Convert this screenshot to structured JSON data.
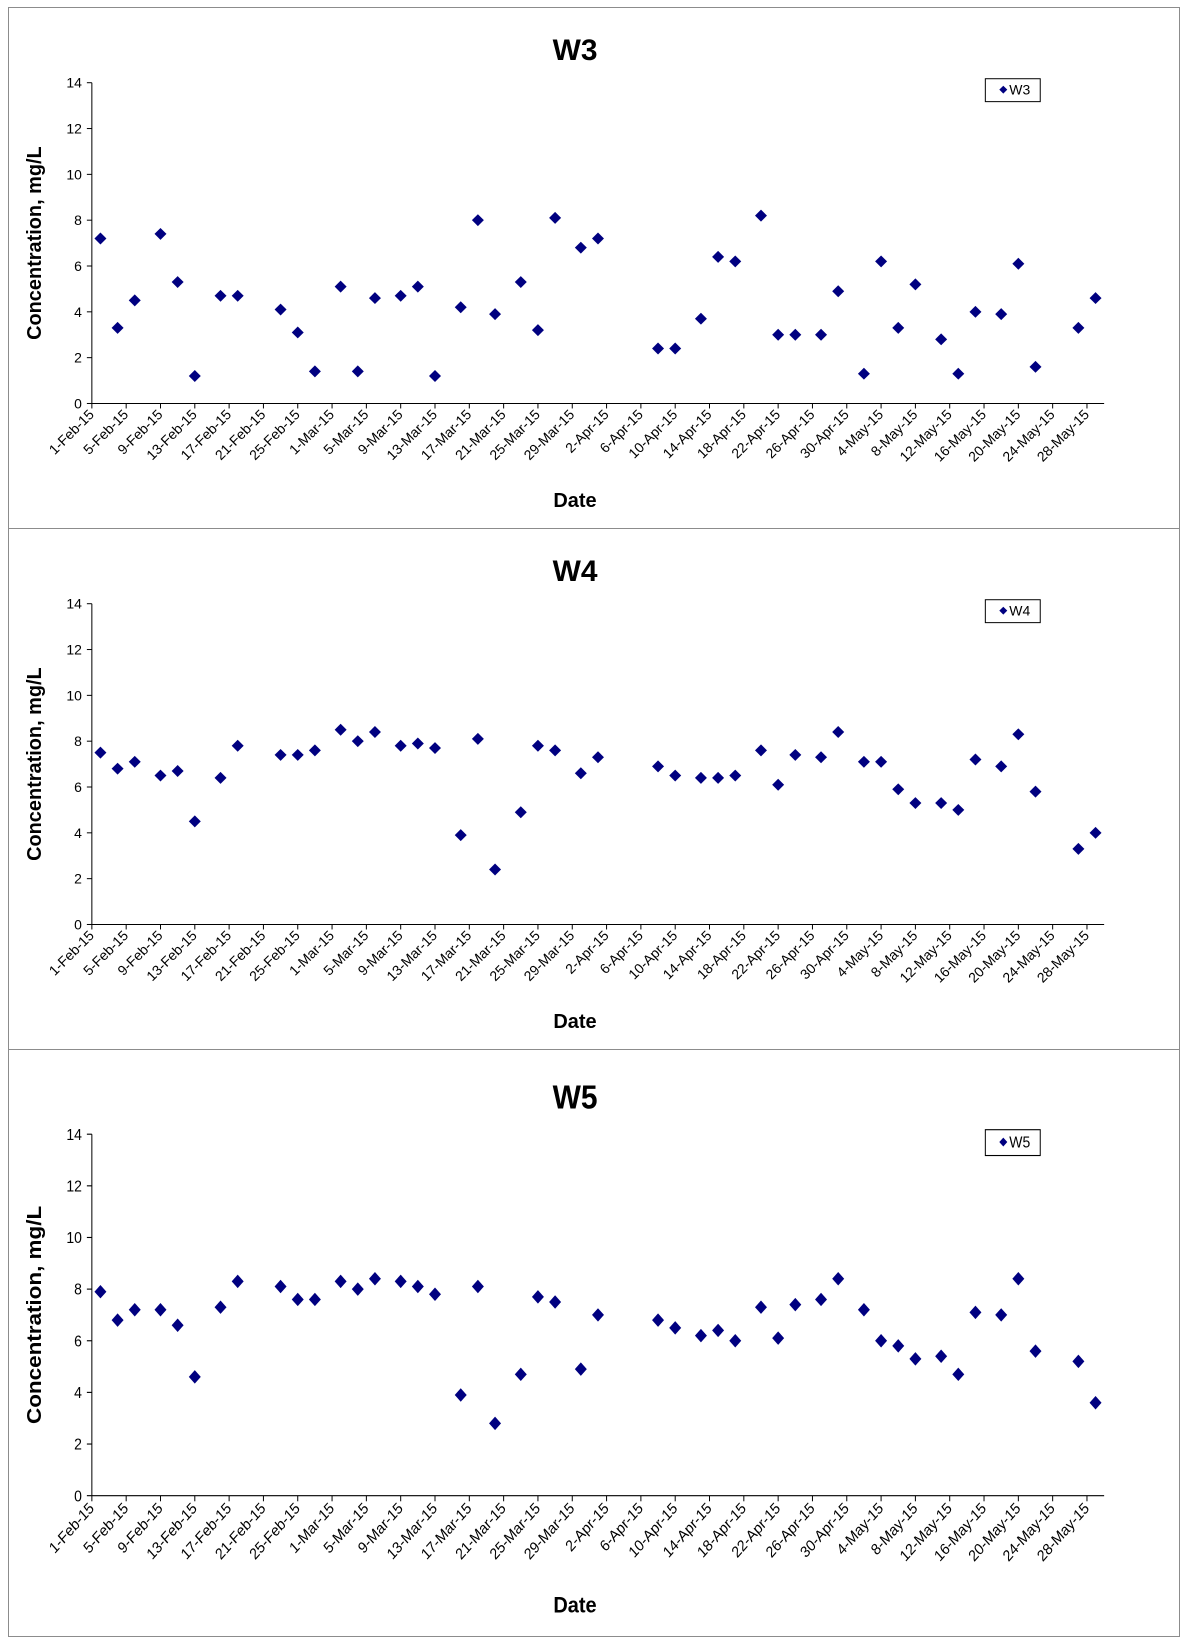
{
  "chart_data": [
    {
      "type": "scatter",
      "title": "W3",
      "xlabel": "Date",
      "ylabel": "Concentration, mg/L",
      "ylim": [
        0,
        14
      ],
      "yticks": [
        "0",
        "2",
        "4",
        "6",
        "8",
        "10",
        "12",
        "14"
      ],
      "xlim": [
        "2015-02-01",
        "2015-05-30"
      ],
      "xticks": [
        "1-Feb-15",
        "5-Feb-15",
        "9-Feb-15",
        "13-Feb-15",
        "17-Feb-15",
        "21-Feb-15",
        "25-Feb-15",
        "1-Mar-15",
        "5-Mar-15",
        "9-Mar-15",
        "13-Mar-15",
        "17-Mar-15",
        "21-Mar-15",
        "25-Mar-15",
        "29-Mar-15",
        "2-Apr-15",
        "6-Apr-15",
        "10-Apr-15",
        "14-Apr-15",
        "18-Apr-15",
        "22-Apr-15",
        "26-Apr-15",
        "30-Apr-15",
        "4-May-15",
        "8-May-15",
        "12-May-15",
        "16-May-15",
        "20-May-15",
        "24-May-15",
        "28-May-15"
      ],
      "grid": false,
      "legend_position": "top-right",
      "marker_color": "#000080",
      "series": [
        {
          "name": "W3",
          "points": [
            [
              "2015-02-02",
              7.2
            ],
            [
              "2015-02-04",
              3.3
            ],
            [
              "2015-02-06",
              4.5
            ],
            [
              "2015-02-09",
              7.4
            ],
            [
              "2015-02-11",
              5.3
            ],
            [
              "2015-02-13",
              1.2
            ],
            [
              "2015-02-16",
              4.7
            ],
            [
              "2015-02-18",
              4.7
            ],
            [
              "2015-02-23",
              4.1
            ],
            [
              "2015-02-25",
              3.1
            ],
            [
              "2015-02-27",
              1.4
            ],
            [
              "2015-03-02",
              5.1
            ],
            [
              "2015-03-04",
              1.4
            ],
            [
              "2015-03-06",
              4.6
            ],
            [
              "2015-03-09",
              4.7
            ],
            [
              "2015-03-11",
              5.1
            ],
            [
              "2015-03-13",
              1.2
            ],
            [
              "2015-03-16",
              4.2
            ],
            [
              "2015-03-18",
              8.0
            ],
            [
              "2015-03-20",
              3.9
            ],
            [
              "2015-03-23",
              5.3
            ],
            [
              "2015-03-25",
              3.2
            ],
            [
              "2015-03-27",
              8.1
            ],
            [
              "2015-03-30",
              6.8
            ],
            [
              "2015-04-01",
              7.2
            ],
            [
              "2015-04-08",
              2.4
            ],
            [
              "2015-04-10",
              2.4
            ],
            [
              "2015-04-13",
              3.7
            ],
            [
              "2015-04-15",
              6.4
            ],
            [
              "2015-04-17",
              6.2
            ],
            [
              "2015-04-20",
              8.2
            ],
            [
              "2015-04-22",
              3.0
            ],
            [
              "2015-04-24",
              3.0
            ],
            [
              "2015-04-27",
              3.0
            ],
            [
              "2015-04-29",
              4.9
            ],
            [
              "2015-05-02",
              1.3
            ],
            [
              "2015-05-04",
              6.2
            ],
            [
              "2015-05-06",
              3.3
            ],
            [
              "2015-05-08",
              5.2
            ],
            [
              "2015-05-11",
              2.8
            ],
            [
              "2015-05-13",
              1.3
            ],
            [
              "2015-05-15",
              4.0
            ],
            [
              "2015-05-18",
              3.9
            ],
            [
              "2015-05-20",
              6.1
            ],
            [
              "2015-05-22",
              1.6
            ],
            [
              "2015-05-27",
              3.3
            ],
            [
              "2015-05-29",
              4.6
            ]
          ]
        }
      ]
    },
    {
      "type": "scatter",
      "title": "W4",
      "xlabel": "Date",
      "ylabel": "Concentration, mg/L",
      "ylim": [
        0,
        14
      ],
      "yticks": [
        "0",
        "2",
        "4",
        "6",
        "8",
        "10",
        "12",
        "14"
      ],
      "xlim": [
        "2015-02-01",
        "2015-05-30"
      ],
      "xticks": [
        "1-Feb-15",
        "5-Feb-15",
        "9-Feb-15",
        "13-Feb-15",
        "17-Feb-15",
        "21-Feb-15",
        "25-Feb-15",
        "1-Mar-15",
        "5-Mar-15",
        "9-Mar-15",
        "13-Mar-15",
        "17-Mar-15",
        "21-Mar-15",
        "25-Mar-15",
        "29-Mar-15",
        "2-Apr-15",
        "6-Apr-15",
        "10-Apr-15",
        "14-Apr-15",
        "18-Apr-15",
        "22-Apr-15",
        "26-Apr-15",
        "30-Apr-15",
        "4-May-15",
        "8-May-15",
        "12-May-15",
        "16-May-15",
        "20-May-15",
        "24-May-15",
        "28-May-15"
      ],
      "grid": false,
      "legend_position": "top-right",
      "marker_color": "#000080",
      "series": [
        {
          "name": "W4",
          "points": [
            [
              "2015-02-02",
              7.5
            ],
            [
              "2015-02-04",
              6.8
            ],
            [
              "2015-02-06",
              7.1
            ],
            [
              "2015-02-09",
              6.5
            ],
            [
              "2015-02-11",
              6.7
            ],
            [
              "2015-02-13",
              4.5
            ],
            [
              "2015-02-16",
              6.4
            ],
            [
              "2015-02-18",
              7.8
            ],
            [
              "2015-02-23",
              7.4
            ],
            [
              "2015-02-25",
              7.4
            ],
            [
              "2015-02-27",
              7.6
            ],
            [
              "2015-03-02",
              8.5
            ],
            [
              "2015-03-04",
              8.0
            ],
            [
              "2015-03-06",
              8.4
            ],
            [
              "2015-03-09",
              7.8
            ],
            [
              "2015-03-11",
              7.9
            ],
            [
              "2015-03-13",
              7.7
            ],
            [
              "2015-03-16",
              3.9
            ],
            [
              "2015-03-18",
              8.1
            ],
            [
              "2015-03-20",
              2.4
            ],
            [
              "2015-03-23",
              4.9
            ],
            [
              "2015-03-25",
              7.8
            ],
            [
              "2015-03-27",
              7.6
            ],
            [
              "2015-03-30",
              6.6
            ],
            [
              "2015-04-01",
              7.3
            ],
            [
              "2015-04-08",
              6.9
            ],
            [
              "2015-04-10",
              6.5
            ],
            [
              "2015-04-13",
              6.4
            ],
            [
              "2015-04-15",
              6.4
            ],
            [
              "2015-04-17",
              6.5
            ],
            [
              "2015-04-20",
              7.6
            ],
            [
              "2015-04-22",
              6.1
            ],
            [
              "2015-04-24",
              7.4
            ],
            [
              "2015-04-27",
              7.3
            ],
            [
              "2015-04-29",
              8.4
            ],
            [
              "2015-05-02",
              7.1
            ],
            [
              "2015-05-04",
              7.1
            ],
            [
              "2015-05-06",
              5.9
            ],
            [
              "2015-05-08",
              5.3
            ],
            [
              "2015-05-11",
              5.3
            ],
            [
              "2015-05-13",
              5.0
            ],
            [
              "2015-05-15",
              7.2
            ],
            [
              "2015-05-18",
              6.9
            ],
            [
              "2015-05-20",
              8.3
            ],
            [
              "2015-05-22",
              5.8
            ],
            [
              "2015-05-27",
              3.3
            ],
            [
              "2015-05-29",
              4.0
            ]
          ]
        }
      ]
    },
    {
      "type": "scatter",
      "title": "W5",
      "xlabel": "Date",
      "ylabel": "Concentration, mg/L",
      "ylim": [
        0,
        14
      ],
      "yticks": [
        "0",
        "2",
        "4",
        "6",
        "8",
        "10",
        "12",
        "14"
      ],
      "xlim": [
        "2015-02-01",
        "2015-05-30"
      ],
      "xticks": [
        "1-Feb-15",
        "5-Feb-15",
        "9-Feb-15",
        "13-Feb-15",
        "17-Feb-15",
        "21-Feb-15",
        "25-Feb-15",
        "1-Mar-15",
        "5-Mar-15",
        "9-Mar-15",
        "13-Mar-15",
        "17-Mar-15",
        "21-Mar-15",
        "25-Mar-15",
        "29-Mar-15",
        "2-Apr-15",
        "6-Apr-15",
        "10-Apr-15",
        "14-Apr-15",
        "18-Apr-15",
        "22-Apr-15",
        "26-Apr-15",
        "30-Apr-15",
        "4-May-15",
        "8-May-15",
        "12-May-15",
        "16-May-15",
        "20-May-15",
        "24-May-15",
        "28-May-15"
      ],
      "grid": false,
      "legend_position": "top-right",
      "marker_color": "#000080",
      "series": [
        {
          "name": "W5",
          "points": [
            [
              "2015-02-02",
              7.9
            ],
            [
              "2015-02-04",
              6.8
            ],
            [
              "2015-02-06",
              7.2
            ],
            [
              "2015-02-09",
              7.2
            ],
            [
              "2015-02-11",
              6.6
            ],
            [
              "2015-02-13",
              4.6
            ],
            [
              "2015-02-16",
              7.3
            ],
            [
              "2015-02-18",
              8.3
            ],
            [
              "2015-02-23",
              8.1
            ],
            [
              "2015-02-25",
              7.6
            ],
            [
              "2015-02-27",
              7.6
            ],
            [
              "2015-03-02",
              8.3
            ],
            [
              "2015-03-04",
              8.0
            ],
            [
              "2015-03-06",
              8.4
            ],
            [
              "2015-03-09",
              8.3
            ],
            [
              "2015-03-11",
              8.1
            ],
            [
              "2015-03-13",
              7.8
            ],
            [
              "2015-03-16",
              3.9
            ],
            [
              "2015-03-18",
              8.1
            ],
            [
              "2015-03-20",
              2.8
            ],
            [
              "2015-03-23",
              4.7
            ],
            [
              "2015-03-25",
              7.7
            ],
            [
              "2015-03-27",
              7.5
            ],
            [
              "2015-03-30",
              4.9
            ],
            [
              "2015-04-01",
              7.0
            ],
            [
              "2015-04-08",
              6.8
            ],
            [
              "2015-04-10",
              6.5
            ],
            [
              "2015-04-13",
              6.2
            ],
            [
              "2015-04-15",
              6.4
            ],
            [
              "2015-04-17",
              6.0
            ],
            [
              "2015-04-20",
              7.3
            ],
            [
              "2015-04-22",
              6.1
            ],
            [
              "2015-04-24",
              7.4
            ],
            [
              "2015-04-27",
              7.6
            ],
            [
              "2015-04-29",
              8.4
            ],
            [
              "2015-05-02",
              7.2
            ],
            [
              "2015-05-04",
              6.0
            ],
            [
              "2015-05-06",
              5.8
            ],
            [
              "2015-05-08",
              5.3
            ],
            [
              "2015-05-11",
              5.4
            ],
            [
              "2015-05-13",
              4.7
            ],
            [
              "2015-05-15",
              7.1
            ],
            [
              "2015-05-18",
              7.0
            ],
            [
              "2015-05-20",
              8.4
            ],
            [
              "2015-05-22",
              5.6
            ],
            [
              "2015-05-27",
              5.2
            ],
            [
              "2015-05-29",
              3.6
            ]
          ]
        }
      ]
    }
  ]
}
